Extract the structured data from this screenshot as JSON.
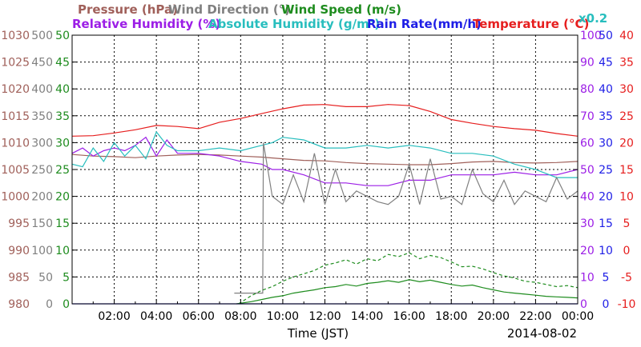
{
  "chart_data": {
    "type": "line",
    "date_label": "2014-08-02",
    "xlabel": "Time (JST)",
    "x_ticks": [
      "02:00",
      "04:00",
      "06:00",
      "08:00",
      "10:00",
      "12:00",
      "14:00",
      "16:00",
      "18:00",
      "20:00",
      "22:00",
      "00:00"
    ],
    "x_range_hours": [
      0,
      24
    ],
    "grid": true,
    "legend": {
      "row1": [
        {
          "text": "Pressure (hPa)",
          "color": "#a0605a"
        },
        {
          "text": "Wind Direction (°)",
          "color": "#808080"
        },
        {
          "text": "Wind Speed (m/s)",
          "color": "#1e8c1e"
        }
      ],
      "row2": [
        {
          "text": "Relative Humidity (%)",
          "color": "#9c1ee6"
        },
        {
          "text": "Absolute Humidity (g/m³)",
          "color": "#28bebe"
        },
        {
          "text": "Rain Rate(mm/h)",
          "color": "#1e1ee6"
        },
        {
          "text": "Temperature (°C)",
          "color": "#e61e1e"
        }
      ],
      "scale_note": {
        "text": "x0.2",
        "color": "#28bebe"
      }
    },
    "axes": [
      {
        "name": "Pressure (hPa)",
        "color": "#a0605a",
        "side": "left",
        "range": [
          980,
          1030
        ],
        "ticks": [
          "980",
          "985",
          "990",
          "995",
          "1000",
          "1005",
          "1010",
          "1015",
          "1020",
          "1025",
          "1030"
        ]
      },
      {
        "name": "Wind Direction (°)",
        "color": "#808080",
        "side": "left",
        "range": [
          0,
          500
        ],
        "ticks": [
          "0",
          "50",
          "100",
          "150",
          "200",
          "250",
          "300",
          "350",
          "400",
          "450",
          "500"
        ]
      },
      {
        "name": "Wind Speed (m/s)",
        "color": "#1e8c1e",
        "side": "left",
        "range": [
          0,
          50
        ],
        "ticks": [
          "0",
          "5",
          "10",
          "15",
          "20",
          "25",
          "30",
          "35",
          "40",
          "45",
          "50"
        ]
      },
      {
        "name": "Relative Humidity (%)",
        "color": "#9c1ee6",
        "side": "right",
        "range": [
          0,
          100
        ],
        "ticks": [
          "0",
          "10",
          "20",
          "30",
          "40",
          "50",
          "60",
          "70",
          "80",
          "90",
          "100"
        ]
      },
      {
        "name": "Rain Rate(mm/h)",
        "color": "#1e1ee6",
        "side": "right",
        "range": [
          0,
          50
        ],
        "ticks": [
          "0",
          "5",
          "10",
          "15",
          "20",
          "25",
          "30",
          "35",
          "40",
          "45",
          "50"
        ]
      },
      {
        "name": "Temperature (°C)",
        "color": "#e61e1e",
        "side": "right",
        "range": [
          -10,
          40
        ],
        "ticks": [
          "-10",
          "-5",
          "0",
          "5",
          "10",
          "15",
          "20",
          "25",
          "30",
          "35",
          "40"
        ]
      }
    ],
    "series": [
      {
        "name": "Temperature (°C)",
        "axis": 5,
        "color": "#e61e1e",
        "x": [
          0,
          1,
          2,
          3,
          4,
          5,
          6,
          7,
          8,
          9,
          10,
          11,
          12,
          13,
          14,
          15,
          16,
          17,
          18,
          19,
          20,
          21,
          22,
          23,
          24
        ],
        "y": [
          21.2,
          21.3,
          21.8,
          22.4,
          23.2,
          23.0,
          22.6,
          23.8,
          24.5,
          25.4,
          26.3,
          27.0,
          27.1,
          26.7,
          26.7,
          27.1,
          26.9,
          25.8,
          24.3,
          23.6,
          23.0,
          22.6,
          22.3,
          21.7,
          21.2
        ]
      },
      {
        "name": "Pressure (hPa)",
        "axis": 0,
        "color": "#a0605a",
        "x": [
          0,
          1,
          2,
          3,
          4,
          5,
          6,
          7,
          8,
          9,
          10,
          11,
          12,
          13,
          14,
          15,
          16,
          17,
          18,
          19,
          20,
          21,
          22,
          23,
          24
        ],
        "y": [
          1007.8,
          1007.5,
          1007.4,
          1007.2,
          1007.5,
          1007.7,
          1007.8,
          1007.7,
          1007.5,
          1007.3,
          1007.0,
          1006.7,
          1006.6,
          1006.3,
          1006.1,
          1006.0,
          1005.9,
          1005.9,
          1006.1,
          1006.4,
          1006.5,
          1006.3,
          1006.2,
          1006.3,
          1006.5
        ]
      },
      {
        "name": "Relative Humidity (%)",
        "axis": 3,
        "color": "#9c1ee6",
        "x": [
          0,
          0.5,
          1,
          1.5,
          2,
          2.5,
          3,
          3.5,
          4,
          4.5,
          5,
          5.5,
          6,
          7,
          8,
          9,
          9.5,
          10,
          11,
          12,
          13,
          14,
          15,
          16,
          17,
          18,
          19,
          20,
          21,
          22,
          23,
          24
        ],
        "y": [
          56,
          58,
          55,
          57,
          58,
          57,
          59,
          62,
          55,
          61,
          56,
          56,
          56,
          55,
          53,
          52,
          50,
          50,
          48,
          45,
          45,
          44,
          44,
          46,
          46,
          48,
          48,
          48,
          49,
          48,
          48,
          50
        ]
      },
      {
        "name": "Absolute Humidity (g/m³)",
        "axis": 3,
        "color": "#28bebe",
        "x": [
          0,
          0.5,
          1,
          1.5,
          2,
          2.5,
          3,
          3.5,
          4,
          4.5,
          5,
          5.5,
          6,
          7,
          8,
          9,
          9.5,
          10,
          11,
          12,
          13,
          14,
          15,
          16,
          17,
          18,
          19,
          20,
          21,
          22,
          23,
          24
        ],
        "y": [
          52,
          51,
          58,
          53,
          60,
          55,
          59,
          54,
          64,
          59,
          57,
          57,
          57,
          58,
          57,
          59,
          60,
          62,
          61,
          58,
          58,
          59,
          58,
          59,
          58,
          56,
          56,
          55,
          52,
          50,
          47,
          47
        ]
      },
      {
        "name": "Wind Direction (°)",
        "axis": 1,
        "color": "#808080",
        "x": [
          7.7,
          9.05,
          9.08,
          9.5,
          10,
          10.5,
          11,
          11.5,
          12,
          12.5,
          13,
          13.5,
          14,
          14.5,
          15,
          15.5,
          16,
          16.5,
          17,
          17.5,
          18,
          18.5,
          19,
          19.5,
          20,
          20.5,
          21,
          21.5,
          22,
          22.5,
          23,
          23.5,
          24
        ],
        "y": [
          20,
          20,
          300,
          200,
          185,
          240,
          190,
          280,
          185,
          250,
          190,
          210,
          200,
          190,
          185,
          200,
          260,
          185,
          270,
          195,
          200,
          185,
          250,
          205,
          190,
          230,
          185,
          210,
          200,
          190,
          235,
          195,
          210
        ]
      },
      {
        "name": "Wind Speed (m/s)",
        "axis": 2,
        "color": "#1e8c1e",
        "x": [
          7.8,
          8.5,
          9,
          9.5,
          10,
          10.5,
          11,
          11.5,
          12,
          12.5,
          13,
          13.5,
          14,
          14.5,
          15,
          15.5,
          16,
          16.5,
          17,
          17.5,
          18,
          18.5,
          19,
          19.5,
          20,
          20.5,
          21,
          21.5,
          22,
          22.5,
          23,
          23.5,
          24
        ],
        "y": [
          0,
          0.4,
          0.8,
          1.2,
          1.5,
          2.0,
          2.3,
          2.6,
          3.0,
          3.2,
          3.6,
          3.3,
          3.8,
          4.0,
          4.3,
          4.0,
          4.5,
          4.1,
          4.4,
          4.0,
          3.6,
          3.3,
          3.5,
          3.0,
          2.6,
          2.2,
          2.0,
          1.8,
          1.6,
          1.4,
          1.3,
          1.2,
          1.1
        ]
      },
      {
        "name": "Wind Speed (m/s) gust",
        "axis": 2,
        "color": "#1e8c1e",
        "dash": true,
        "x": [
          7.9,
          8.5,
          9,
          9.5,
          10,
          10.5,
          11,
          11.5,
          12,
          12.5,
          13,
          13.5,
          14,
          14.5,
          15,
          15.5,
          16,
          16.5,
          17,
          17.5,
          18,
          18.5,
          19,
          19.5,
          20,
          20.5,
          21,
          21.5,
          22,
          22.5,
          23,
          23.5,
          24
        ],
        "y": [
          0,
          1.5,
          2.5,
          3.2,
          4.2,
          5.0,
          5.6,
          6.2,
          7.2,
          7.6,
          8.2,
          7.4,
          8.4,
          8.0,
          9.2,
          8.8,
          9.5,
          8.4,
          9.0,
          8.6,
          7.8,
          6.9,
          7.0,
          6.5,
          5.8,
          5.2,
          4.8,
          4.2,
          4.0,
          3.6,
          3.2,
          3.4,
          3.0
        ]
      },
      {
        "name": "Rain Rate(mm/h)",
        "axis": 4,
        "color": "#1e1ee6",
        "x": [
          0,
          24
        ],
        "y": [
          0,
          0
        ]
      }
    ]
  }
}
